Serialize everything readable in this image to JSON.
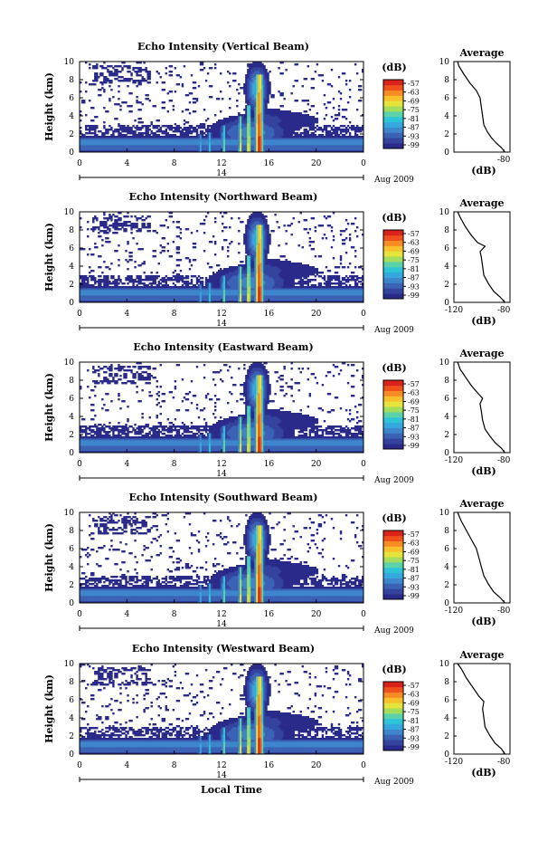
{
  "figure": {
    "xlabel": "Local Time",
    "date_label": "Aug 2009",
    "day_label": "14",
    "xticks": [
      "0",
      "4",
      "8",
      "12",
      "16",
      "20",
      "0"
    ],
    "colorbar": {
      "unit_label": "(dB)",
      "tick_labels": [
        "-57",
        "-63",
        "-69",
        "-75",
        "-81",
        "-87",
        "-93",
        "-99"
      ],
      "colors": [
        "#2a2a8a",
        "#34449e",
        "#3c62b6",
        "#3e86cc",
        "#34a8dc",
        "#2ec4d8",
        "#5cd2a8",
        "#a4dc5c",
        "#e4e43c",
        "#f8c02c",
        "#f88c24",
        "#f0501c",
        "#d8221c"
      ]
    },
    "profile_title": "Average",
    "profile_xlabel": "(dB)"
  },
  "chart_data": [
    {
      "type": "heatmap",
      "title": "Echo Intensity (Vertical Beam)",
      "ylabel": "Height (km)",
      "ylim": [
        0,
        10
      ],
      "xlim_hours": [
        0,
        24
      ],
      "yticks": [
        "0",
        "2",
        "4",
        "6",
        "8",
        "10"
      ],
      "profile": {
        "type": "line",
        "title": "Average",
        "xlabel": "(dB)",
        "xticks": [
          "",
          "-80"
        ],
        "yticks": [
          "0",
          "2",
          "4",
          "6",
          "8",
          "10"
        ],
        "xlim": [
          -120,
          -75
        ],
        "points": [
          [
            -79,
            0
          ],
          [
            -82,
            0.5
          ],
          [
            -86,
            1
          ],
          [
            -90,
            1.6
          ],
          [
            -93,
            2.2
          ],
          [
            -96,
            3
          ],
          [
            -97,
            4
          ],
          [
            -98,
            5
          ],
          [
            -99,
            6
          ],
          [
            -102,
            6.8
          ],
          [
            -107,
            7.6
          ],
          [
            -112,
            8.6
          ],
          [
            -116,
            9.5
          ],
          [
            -117,
            10
          ]
        ]
      }
    },
    {
      "type": "heatmap",
      "title": "Echo Intensity (Northward Beam)",
      "ylabel": "Height (km)",
      "ylim": [
        0,
        10
      ],
      "xlim_hours": [
        0,
        24
      ],
      "yticks": [
        "0",
        "2",
        "4",
        "6",
        "8",
        "10"
      ],
      "profile": {
        "type": "line",
        "title": "Average",
        "xlabel": "(dB)",
        "xticks": [
          "-120",
          "-80"
        ],
        "yticks": [
          "0",
          "2",
          "4",
          "6",
          "8",
          "10"
        ],
        "xlim": [
          -120,
          -75
        ],
        "points": [
          [
            -79,
            0
          ],
          [
            -83,
            0.6
          ],
          [
            -88,
            1.2
          ],
          [
            -92,
            2
          ],
          [
            -96,
            3
          ],
          [
            -97,
            4
          ],
          [
            -98,
            5
          ],
          [
            -99,
            5.6
          ],
          [
            -95,
            6.2
          ],
          [
            -101,
            6.6
          ],
          [
            -106,
            7.4
          ],
          [
            -111,
            8.4
          ],
          [
            -115,
            9.4
          ],
          [
            -117,
            10
          ]
        ]
      }
    },
    {
      "type": "heatmap",
      "title": "Echo Intensity (Eastward Beam)",
      "ylabel": "Height (km)",
      "ylim": [
        0,
        10
      ],
      "xlim_hours": [
        0,
        24
      ],
      "yticks": [
        "0",
        "2",
        "4",
        "6",
        "8",
        "10"
      ],
      "profile": {
        "type": "line",
        "title": "Average",
        "xlabel": "(dB)",
        "xticks": [
          "-120",
          "-80"
        ],
        "yticks": [
          "0",
          "2",
          "4",
          "6",
          "8",
          "10"
        ],
        "xlim": [
          -120,
          -75
        ],
        "points": [
          [
            -79,
            0
          ],
          [
            -82,
            0.5
          ],
          [
            -87,
            1.1
          ],
          [
            -91,
            1.8
          ],
          [
            -95,
            2.6
          ],
          [
            -97,
            3.6
          ],
          [
            -98,
            4.6
          ],
          [
            -99,
            5.4
          ],
          [
            -97,
            6
          ],
          [
            -101,
            6.6
          ],
          [
            -106,
            7.4
          ],
          [
            -110,
            8.2
          ],
          [
            -115,
            9.2
          ],
          [
            -117,
            10
          ]
        ]
      }
    },
    {
      "type": "heatmap",
      "title": "Echo Intensity (Southward Beam)",
      "ylabel": "Height (km)",
      "ylim": [
        0,
        10
      ],
      "xlim_hours": [
        0,
        24
      ],
      "yticks": [
        "0",
        "2",
        "4",
        "6",
        "8",
        "10"
      ],
      "profile": {
        "type": "line",
        "title": "Average",
        "xlabel": "(dB)",
        "xticks": [
          "-120",
          "-80"
        ],
        "yticks": [
          "0",
          "2",
          "4",
          "6",
          "8",
          "10"
        ],
        "xlim": [
          -120,
          -75
        ],
        "points": [
          [
            -79,
            0
          ],
          [
            -83,
            0.6
          ],
          [
            -88,
            1.2
          ],
          [
            -92,
            2
          ],
          [
            -96,
            3
          ],
          [
            -98,
            4
          ],
          [
            -100,
            5
          ],
          [
            -102,
            6
          ],
          [
            -106,
            7
          ],
          [
            -110,
            8
          ],
          [
            -114,
            9
          ],
          [
            -117,
            10
          ]
        ]
      }
    },
    {
      "type": "heatmap",
      "title": "Echo Intensity (Westward Beam)",
      "ylabel": "Height (km)",
      "ylim": [
        0,
        10
      ],
      "xlim_hours": [
        0,
        24
      ],
      "yticks": [
        "0",
        "2",
        "4",
        "6",
        "8",
        "10"
      ],
      "profile": {
        "type": "line",
        "title": "Average",
        "xlabel": "(dB)",
        "xticks": [
          "-120",
          "-80"
        ],
        "yticks": [
          "0",
          "2",
          "4",
          "6",
          "8",
          "10"
        ],
        "xlim": [
          -120,
          -75
        ],
        "points": [
          [
            -79,
            0
          ],
          [
            -82,
            0.6
          ],
          [
            -87,
            1.2
          ],
          [
            -91,
            2
          ],
          [
            -95,
            3
          ],
          [
            -96,
            4
          ],
          [
            -97,
            5
          ],
          [
            -96,
            5.8
          ],
          [
            -100,
            6.4
          ],
          [
            -105,
            7.4
          ],
          [
            -110,
            8.4
          ],
          [
            -114,
            9.4
          ],
          [
            -117,
            10
          ]
        ]
      }
    }
  ]
}
